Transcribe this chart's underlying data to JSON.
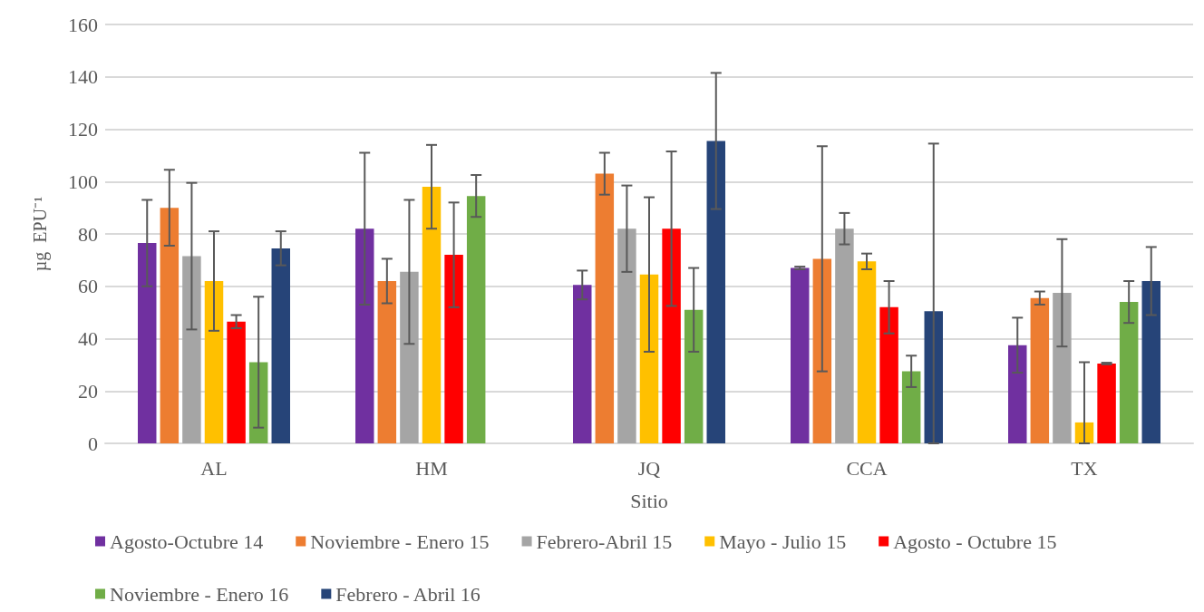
{
  "chart_data": {
    "type": "bar",
    "xlabel": "Sitio",
    "ylabel": "µg  EPU⁻¹",
    "categories": [
      "AL",
      "HM",
      "JQ",
      "CCA",
      "TX"
    ],
    "ylim": [
      0,
      160
    ],
    "yticks": [
      0,
      20,
      40,
      60,
      80,
      100,
      120,
      140,
      160
    ],
    "grid": "y",
    "legend": "bottom",
    "series": [
      {
        "name": "Agosto-Octubre 14",
        "color": "#7030a0",
        "values": [
          76.5,
          82,
          60.5,
          67,
          37.5
        ],
        "errors": [
          16.5,
          29,
          5.5,
          0.5,
          10.5
        ]
      },
      {
        "name": "Noviembre - Enero 15",
        "color": "#ed7d31",
        "values": [
          90,
          62,
          103,
          70.5,
          55.5
        ],
        "errors": [
          14.5,
          8.5,
          8,
          43,
          2.5
        ]
      },
      {
        "name": "Febrero-Abril 15",
        "color": "#a5a5a5",
        "values": [
          71.5,
          65.5,
          82,
          82,
          57.5
        ],
        "errors": [
          28,
          27.5,
          16.5,
          6,
          20.5
        ]
      },
      {
        "name": "Mayo - Julio 15",
        "color": "#ffc000",
        "values": [
          62,
          98,
          64.5,
          69.5,
          8
        ],
        "errors": [
          19,
          16,
          29.5,
          3,
          [
            0,
            31
          ]
        ]
      },
      {
        "name": "Agosto - Octubre 15",
        "color": "#ff0000",
        "values": [
          46.5,
          72,
          82,
          52,
          30.5
        ],
        "errors": [
          2.5,
          20,
          29.5,
          10,
          0.3
        ]
      },
      {
        "name": "Noviembre - Enero 16",
        "color": "#70ad47",
        "values": [
          31,
          94.5,
          51,
          27.5,
          54
        ],
        "errors": [
          25,
          8,
          16,
          6,
          8
        ]
      },
      {
        "name": "Febrero - Abril 16",
        "color": "#264478",
        "values": [
          74.5,
          null,
          115.5,
          50.5,
          62
        ],
        "errors": [
          6.5,
          null,
          26,
          [
            0,
            114.5
          ],
          13
        ]
      }
    ]
  }
}
